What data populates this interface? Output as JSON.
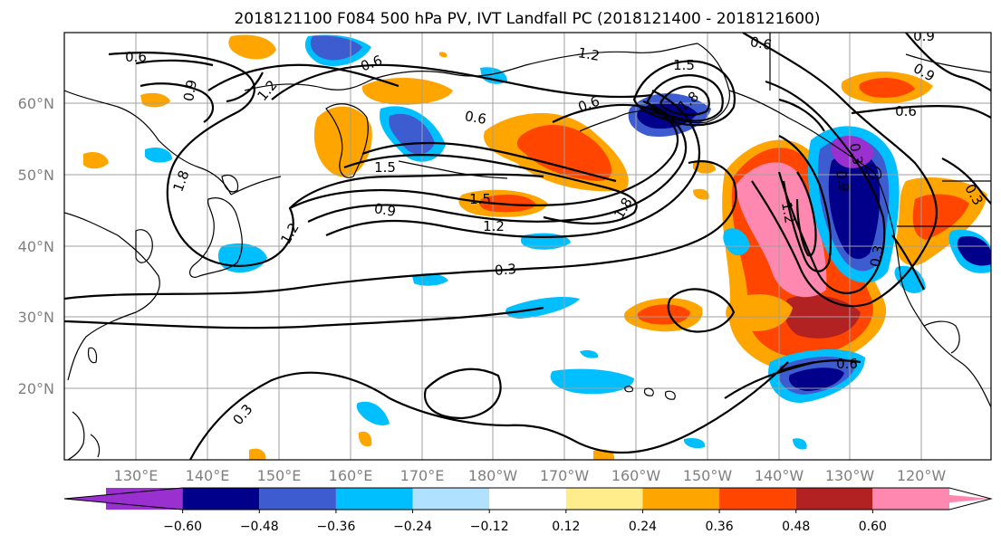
{
  "figure": {
    "title": "2018121100 F084 500 hPa PV, IVT Landfall PC (2018121400 - 2018121600)"
  },
  "map": {
    "lat_labels": [
      "60°N",
      "50°N",
      "40°N",
      "30°N",
      "20°N"
    ],
    "lon_labels": [
      "130°E",
      "140°E",
      "150°E",
      "160°E",
      "170°E",
      "180°W",
      "170°W",
      "160°W",
      "150°W",
      "140°W",
      "130°W",
      "120°W"
    ],
    "contour_labels": [
      "0.6",
      "1.2",
      "0.9",
      "0.6",
      "0.6",
      "1.2",
      "1.5",
      "1.8",
      "0.6",
      "0.9",
      "0.6",
      "0.9",
      "0.6",
      "1.5",
      "1.5",
      "1.2",
      "0.9",
      "1.8",
      "1.2",
      "0.3",
      "0.3",
      "0.9",
      "1.2",
      "1.8",
      "0.3",
      "0.6",
      "0.3",
      "0.3"
    ]
  },
  "colorbar": {
    "ticks": [
      "−0.60",
      "−0.48",
      "−0.36",
      "−0.24",
      "−0.12",
      "0.12",
      "0.24",
      "0.36",
      "0.48",
      "0.60"
    ],
    "colors": [
      "#9b30d0",
      "#00008b",
      "#3c5ccf",
      "#00bfff",
      "#b0e2ff",
      "#ffffff",
      "#ffec8b",
      "#ffa500",
      "#ff4500",
      "#b22222",
      "#ff88b0"
    ]
  },
  "shading_colors": {
    "neg_extreme": "#9b30d0",
    "neg_strong": "#00008b",
    "neg_mid": "#3c5ccf",
    "neg_weak": "#00bfff",
    "neg_faint": "#b0e2ff",
    "pos_faint": "#ffec8b",
    "pos_weak": "#ffa500",
    "pos_mid": "#ff4500",
    "pos_strong": "#b22222",
    "pos_extreme": "#ff88b0"
  }
}
